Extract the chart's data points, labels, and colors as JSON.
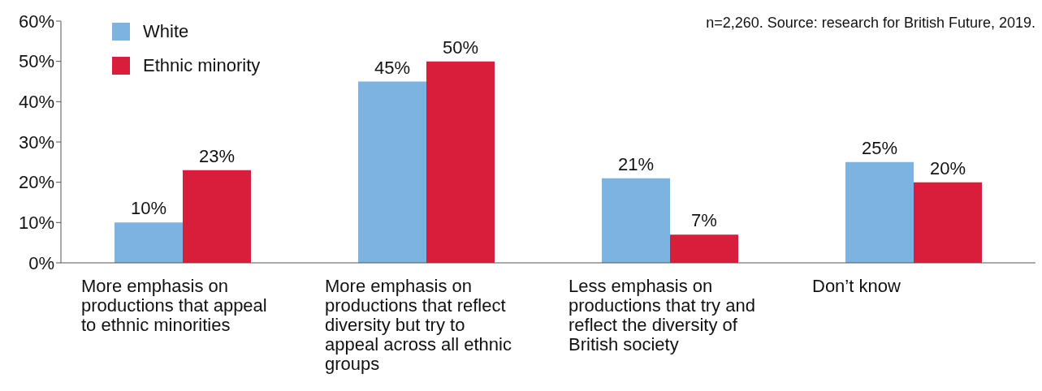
{
  "chart_data": {
    "type": "bar",
    "categories": [
      "More emphasis on productions that appeal to ethnic minorities",
      "More emphasis on productions that reflect diversity but try to appeal across all ethnic groups",
      "Less emphasis on productions that try and reflect the diversity of British society",
      "Don’t know"
    ],
    "series": [
      {
        "name": "White",
        "color": "#7db3e0",
        "values": [
          10,
          45,
          21,
          25
        ],
        "value_labels": [
          "10%",
          "45%",
          "21%",
          "25%"
        ]
      },
      {
        "name": "Ethnic minority",
        "color": "#d81e3a",
        "values": [
          23,
          50,
          7,
          20
        ],
        "value_labels": [
          "23%",
          "50%",
          "7%",
          "20%"
        ]
      }
    ],
    "ylim": [
      0,
      60
    ],
    "yticks": [
      {
        "value": 0,
        "label": "0%"
      },
      {
        "value": 10,
        "label": "10%"
      },
      {
        "value": 20,
        "label": "20%"
      },
      {
        "value": 30,
        "label": "30%"
      },
      {
        "value": 40,
        "label": "40%"
      },
      {
        "value": 50,
        "label": "50%"
      },
      {
        "value": 60,
        "label": "60%"
      }
    ],
    "grid": false,
    "legend": "top left",
    "annotations": [
      "n=2,260. Source: research for British Future, 2019."
    ]
  }
}
